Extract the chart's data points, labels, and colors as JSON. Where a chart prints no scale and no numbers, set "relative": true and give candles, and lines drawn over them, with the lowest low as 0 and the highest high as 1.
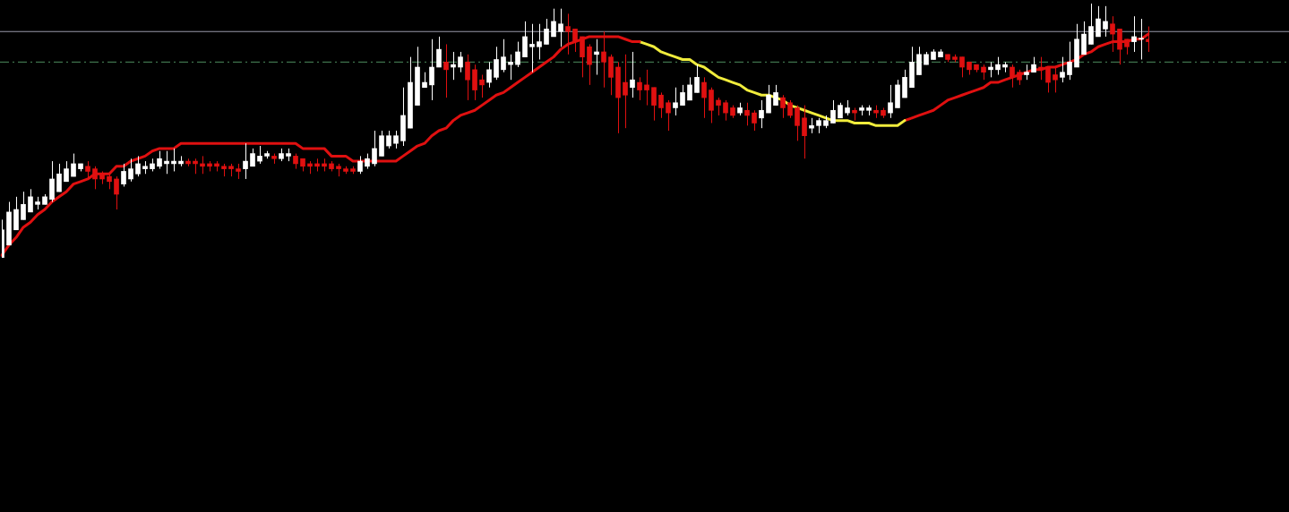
{
  "chart_data": {
    "type": "candlestick",
    "relative": true,
    "categories": [
      null,
      null,
      null,
      null,
      null,
      null,
      null,
      null,
      null,
      null,
      null,
      null,
      null,
      null,
      null,
      null,
      null,
      null,
      null,
      null,
      null,
      null,
      null,
      null,
      null,
      null,
      null,
      null,
      null,
      null,
      null,
      null,
      null,
      null,
      null,
      null,
      null,
      null,
      null,
      null,
      null,
      null,
      null,
      null,
      null,
      null,
      null,
      null,
      null,
      null,
      null,
      null,
      null,
      null,
      null,
      null,
      null,
      null,
      null,
      null,
      null,
      null,
      null,
      null,
      null,
      null,
      null,
      null,
      null,
      null,
      null,
      null,
      null,
      null,
      null,
      null,
      null,
      null,
      null,
      null,
      null,
      null,
      null,
      null,
      null,
      null,
      null,
      null,
      null,
      null,
      null,
      null,
      null,
      null,
      null,
      null,
      null,
      null,
      null,
      null,
      null,
      null,
      null,
      null,
      null,
      null,
      null,
      null,
      null,
      null,
      null,
      null,
      null,
      null,
      null,
      null,
      null,
      null,
      null,
      null,
      null,
      null,
      null,
      null,
      null,
      null,
      null,
      null,
      null,
      null,
      null,
      null,
      null,
      null,
      null,
      null,
      null,
      null,
      null,
      null,
      null,
      null,
      null,
      null,
      null,
      null,
      null,
      null,
      null,
      null,
      null,
      null,
      null,
      null,
      null,
      null,
      null,
      null,
      null,
      null,
      null
    ],
    "ohlc": [
      [
        0.0,
        0.15,
        0.0,
        0.11
      ],
      [
        0.05,
        0.22,
        0.05,
        0.18
      ],
      [
        0.11,
        0.24,
        0.11,
        0.19
      ],
      [
        0.15,
        0.26,
        0.15,
        0.21
      ],
      [
        0.18,
        0.27,
        0.18,
        0.24
      ],
      [
        0.21,
        0.24,
        0.19,
        0.22
      ],
      [
        0.21,
        0.25,
        0.21,
        0.24
      ],
      [
        0.23,
        0.38,
        0.22,
        0.31
      ],
      [
        0.26,
        0.37,
        0.26,
        0.33
      ],
      [
        0.3,
        0.38,
        0.3,
        0.35
      ],
      [
        0.32,
        0.41,
        0.32,
        0.37
      ],
      [
        0.35,
        0.37,
        0.34,
        0.37
      ],
      [
        0.36,
        0.38,
        0.31,
        0.34
      ],
      [
        0.35,
        0.36,
        0.27,
        0.31
      ],
      [
        0.33,
        0.34,
        0.29,
        0.31
      ],
      [
        0.32,
        0.33,
        0.27,
        0.3
      ],
      [
        0.31,
        0.32,
        0.19,
        0.25
      ],
      [
        0.29,
        0.37,
        0.28,
        0.34
      ],
      [
        0.31,
        0.39,
        0.3,
        0.35
      ],
      [
        0.33,
        0.4,
        0.32,
        0.37
      ],
      [
        0.35,
        0.38,
        0.33,
        0.36
      ],
      [
        0.35,
        0.39,
        0.34,
        0.37
      ],
      [
        0.36,
        0.42,
        0.35,
        0.39
      ],
      [
        0.37,
        0.42,
        0.33,
        0.38
      ],
      [
        0.37,
        0.43,
        0.34,
        0.38
      ],
      [
        0.37,
        0.4,
        0.36,
        0.38
      ],
      [
        0.38,
        0.39,
        0.36,
        0.37
      ],
      [
        0.38,
        0.39,
        0.33,
        0.37
      ],
      [
        0.37,
        0.4,
        0.33,
        0.36
      ],
      [
        0.37,
        0.38,
        0.34,
        0.36
      ],
      [
        0.37,
        0.38,
        0.34,
        0.36
      ],
      [
        0.36,
        0.37,
        0.32,
        0.35
      ],
      [
        0.36,
        0.37,
        0.32,
        0.35
      ],
      [
        0.35,
        0.37,
        0.31,
        0.34
      ],
      [
        0.35,
        0.45,
        0.31,
        0.38
      ],
      [
        0.36,
        0.43,
        0.36,
        0.41
      ],
      [
        0.38,
        0.44,
        0.37,
        0.4
      ],
      [
        0.4,
        0.42,
        0.39,
        0.41
      ],
      [
        0.4,
        0.41,
        0.37,
        0.39
      ],
      [
        0.39,
        0.43,
        0.38,
        0.41
      ],
      [
        0.4,
        0.43,
        0.38,
        0.41
      ],
      [
        0.4,
        0.41,
        0.35,
        0.37
      ],
      [
        0.39,
        0.39,
        0.34,
        0.36
      ],
      [
        0.37,
        0.38,
        0.33,
        0.36
      ],
      [
        0.37,
        0.39,
        0.34,
        0.36
      ],
      [
        0.37,
        0.39,
        0.34,
        0.36
      ],
      [
        0.37,
        0.38,
        0.34,
        0.35
      ],
      [
        0.36,
        0.37,
        0.32,
        0.35
      ],
      [
        0.35,
        0.36,
        0.33,
        0.34
      ],
      [
        0.35,
        0.36,
        0.33,
        0.34
      ],
      [
        0.34,
        0.4,
        0.33,
        0.38
      ],
      [
        0.36,
        0.41,
        0.35,
        0.39
      ],
      [
        0.37,
        0.5,
        0.36,
        0.43
      ],
      [
        0.4,
        0.5,
        0.4,
        0.48
      ],
      [
        0.44,
        0.5,
        0.43,
        0.48
      ],
      [
        0.45,
        0.5,
        0.43,
        0.48
      ],
      [
        0.46,
        0.67,
        0.44,
        0.56
      ],
      [
        0.51,
        0.79,
        0.51,
        0.69
      ],
      [
        0.6,
        0.83,
        0.6,
        0.75
      ],
      [
        0.67,
        0.73,
        0.67,
        0.69
      ],
      [
        0.68,
        0.86,
        0.62,
        0.75
      ],
      [
        0.75,
        0.87,
        0.75,
        0.82
      ],
      [
        0.77,
        0.84,
        0.63,
        0.74
      ],
      [
        0.75,
        0.81,
        0.7,
        0.76
      ],
      [
        0.75,
        0.81,
        0.73,
        0.79
      ],
      [
        0.77,
        0.8,
        0.62,
        0.7
      ],
      [
        0.74,
        0.76,
        0.62,
        0.66
      ],
      [
        0.7,
        0.72,
        0.63,
        0.68
      ],
      [
        0.69,
        0.77,
        0.67,
        0.74
      ],
      [
        0.71,
        0.83,
        0.7,
        0.78
      ],
      [
        0.74,
        0.86,
        0.73,
        0.79
      ],
      [
        0.76,
        0.8,
        0.7,
        0.77
      ],
      [
        0.76,
        0.85,
        0.75,
        0.81
      ],
      [
        0.79,
        0.93,
        0.79,
        0.87
      ],
      [
        0.83,
        0.92,
        0.73,
        0.84
      ],
      [
        0.83,
        0.92,
        0.78,
        0.85
      ],
      [
        0.84,
        0.94,
        0.84,
        0.9
      ],
      [
        0.87,
        0.98,
        0.87,
        0.93
      ],
      [
        0.89,
        0.98,
        0.83,
        0.92
      ],
      [
        0.91,
        0.96,
        0.8,
        0.89
      ],
      [
        0.9,
        0.9,
        0.81,
        0.85
      ],
      [
        0.87,
        0.87,
        0.71,
        0.79
      ],
      [
        0.83,
        0.84,
        0.68,
        0.76
      ],
      [
        0.8,
        0.86,
        0.72,
        0.81
      ],
      [
        0.81,
        0.89,
        0.67,
        0.77
      ],
      [
        0.79,
        0.8,
        0.64,
        0.71
      ],
      [
        0.75,
        0.77,
        0.49,
        0.63
      ],
      [
        0.69,
        0.8,
        0.51,
        0.64
      ],
      [
        0.67,
        0.81,
        0.63,
        0.7
      ],
      [
        0.69,
        0.71,
        0.62,
        0.66
      ],
      [
        0.68,
        0.74,
        0.6,
        0.66
      ],
      [
        0.67,
        0.67,
        0.54,
        0.6
      ],
      [
        0.64,
        0.65,
        0.55,
        0.59
      ],
      [
        0.61,
        0.62,
        0.5,
        0.57
      ],
      [
        0.59,
        0.67,
        0.56,
        0.61
      ],
      [
        0.6,
        0.68,
        0.6,
        0.65
      ],
      [
        0.62,
        0.71,
        0.62,
        0.68
      ],
      [
        0.65,
        0.76,
        0.65,
        0.71
      ],
      [
        0.69,
        0.71,
        0.55,
        0.63
      ],
      [
        0.66,
        0.67,
        0.53,
        0.58
      ],
      [
        0.62,
        0.63,
        0.56,
        0.6
      ],
      [
        0.61,
        0.62,
        0.54,
        0.57
      ],
      [
        0.59,
        0.6,
        0.55,
        0.56
      ],
      [
        0.57,
        0.61,
        0.56,
        0.59
      ],
      [
        0.58,
        0.61,
        0.52,
        0.56
      ],
      [
        0.57,
        0.58,
        0.5,
        0.53
      ],
      [
        0.55,
        0.62,
        0.51,
        0.58
      ],
      [
        0.57,
        0.68,
        0.57,
        0.64
      ],
      [
        0.6,
        0.68,
        0.6,
        0.65
      ],
      [
        0.63,
        0.64,
        0.55,
        0.59
      ],
      [
        0.61,
        0.62,
        0.55,
        0.56
      ],
      [
        0.59,
        0.6,
        0.46,
        0.52
      ],
      [
        0.55,
        0.6,
        0.39,
        0.48
      ],
      [
        0.51,
        0.55,
        0.49,
        0.52
      ],
      [
        0.52,
        0.55,
        0.49,
        0.54
      ],
      [
        0.52,
        0.56,
        0.51,
        0.54
      ],
      [
        0.53,
        0.62,
        0.53,
        0.58
      ],
      [
        0.55,
        0.61,
        0.55,
        0.6
      ],
      [
        0.57,
        0.62,
        0.56,
        0.59
      ],
      [
        0.58,
        0.59,
        0.54,
        0.57
      ],
      [
        0.58,
        0.6,
        0.56,
        0.59
      ],
      [
        0.58,
        0.6,
        0.56,
        0.59
      ],
      [
        0.58,
        0.6,
        0.55,
        0.57
      ],
      [
        0.58,
        0.59,
        0.55,
        0.56
      ],
      [
        0.57,
        0.68,
        0.55,
        0.61
      ],
      [
        0.59,
        0.7,
        0.59,
        0.68
      ],
      [
        0.63,
        0.74,
        0.63,
        0.71
      ],
      [
        0.67,
        0.83,
        0.67,
        0.77
      ],
      [
        0.72,
        0.83,
        0.72,
        0.8
      ],
      [
        0.76,
        0.81,
        0.76,
        0.8
      ],
      [
        0.78,
        0.82,
        0.78,
        0.81
      ],
      [
        0.79,
        0.82,
        0.79,
        0.81
      ],
      [
        0.8,
        0.8,
        0.77,
        0.78
      ],
      [
        0.79,
        0.8,
        0.77,
        0.78
      ],
      [
        0.79,
        0.79,
        0.71,
        0.75
      ],
      [
        0.77,
        0.77,
        0.72,
        0.74
      ],
      [
        0.76,
        0.76,
        0.73,
        0.74
      ],
      [
        0.75,
        0.76,
        0.7,
        0.73
      ],
      [
        0.74,
        0.77,
        0.71,
        0.75
      ],
      [
        0.74,
        0.79,
        0.72,
        0.76
      ],
      [
        0.75,
        0.77,
        0.73,
        0.76
      ],
      [
        0.75,
        0.76,
        0.67,
        0.71
      ],
      [
        0.73,
        0.74,
        0.68,
        0.7
      ],
      [
        0.72,
        0.76,
        0.7,
        0.73
      ],
      [
        0.73,
        0.79,
        0.73,
        0.76
      ],
      [
        0.75,
        0.79,
        0.7,
        0.74
      ],
      [
        0.75,
        0.75,
        0.65,
        0.69
      ],
      [
        0.72,
        0.75,
        0.65,
        0.7
      ],
      [
        0.71,
        0.79,
        0.69,
        0.73
      ],
      [
        0.72,
        0.85,
        0.7,
        0.77
      ],
      [
        0.75,
        0.92,
        0.75,
        0.86
      ],
      [
        0.8,
        0.93,
        0.8,
        0.88
      ],
      [
        0.84,
        1,
        0.84,
        0.91
      ],
      [
        0.87,
        0.99,
        0.87,
        0.94
      ],
      [
        0.9,
        0.99,
        0.87,
        0.93
      ],
      [
        0.92,
        0.95,
        0.81,
        0.88
      ],
      [
        0.9,
        0.9,
        0.76,
        0.82
      ],
      [
        0.86,
        0.86,
        0.8,
        0.83
      ],
      [
        0.85,
        0.95,
        0.81,
        0.87
      ],
      [
        0.86,
        0.94,
        0.78,
        0.86
      ],
      [
        0.86,
        0.91,
        0.81,
        0.85
      ]
    ],
    "series": [
      {
        "type": "line",
        "color": "#e01010",
        "values": [
          0.01,
          0.05,
          0.08,
          0.12,
          0.14,
          0.17,
          0.19,
          0.22,
          0.24,
          0.26,
          0.29,
          0.3,
          0.31,
          0.33,
          0.33,
          0.33,
          0.36,
          0.36,
          0.38,
          0.39,
          0.4,
          0.42,
          0.43,
          0.43,
          0.43,
          0.45,
          0.45,
          0.45,
          0.45,
          0.45,
          0.45,
          0.45,
          0.45,
          0.45,
          0.45,
          0.45,
          0.45,
          0.45,
          0.45,
          0.45,
          0.45,
          0.45,
          0.43,
          0.43,
          0.43,
          0.43,
          0.4,
          0.4,
          0.4,
          0.38,
          0.38,
          0.38,
          0.38,
          0.38,
          0.38,
          0.38,
          0.4,
          0.42,
          0.44,
          0.45,
          0.48,
          0.5,
          0.51,
          0.54,
          0.56,
          0.57,
          0.58,
          0.6,
          0.62,
          0.64,
          0.65,
          0.67,
          0.69,
          0.71,
          0.73,
          0.75,
          0.77,
          0.79,
          0.82,
          0.84,
          0.85,
          0.86,
          0.87,
          0.87,
          0.87,
          0.87,
          0.87,
          0.86,
          0.85,
          0.85,
          null,
          null,
          null,
          null,
          null,
          null,
          null,
          null,
          null,
          null,
          null,
          null,
          null,
          null,
          null,
          null,
          null,
          null,
          null,
          null,
          null,
          null,
          null,
          null,
          null,
          null,
          null,
          null,
          null,
          null,
          null,
          null,
          null,
          null,
          null,
          null,
          null,
          null,
          null,
          null,
          null,
          null,
          null,
          null,
          null,
          null,
          null,
          null,
          null,
          null,
          null,
          null,
          null,
          null,
          null,
          null,
          null,
          null,
          null,
          null,
          null,
          null,
          null,
          null,
          null,
          null,
          null,
          null,
          null,
          null,
          null
        ]
      },
      {
        "type": "line",
        "color": "#f0ec3c",
        "values": [
          null,
          null,
          null,
          null,
          null,
          null,
          null,
          null,
          null,
          null,
          null,
          null,
          null,
          null,
          null,
          null,
          null,
          null,
          null,
          null,
          null,
          null,
          null,
          null,
          null,
          null,
          null,
          null,
          null,
          null,
          null,
          null,
          null,
          null,
          null,
          null,
          null,
          null,
          null,
          null,
          null,
          null,
          null,
          null,
          null,
          null,
          null,
          null,
          null,
          null,
          null,
          null,
          null,
          null,
          null,
          null,
          null,
          null,
          null,
          null,
          null,
          null,
          null,
          null,
          null,
          null,
          null,
          null,
          null,
          null,
          null,
          null,
          null,
          null,
          null,
          null,
          null,
          null,
          null,
          null,
          null,
          null,
          null,
          null,
          null,
          null,
          null,
          null,
          null,
          0.85,
          0.84,
          0.83,
          0.81,
          0.8,
          0.79,
          0.78,
          0.78,
          0.76,
          0.75,
          0.73,
          0.71,
          0.7,
          0.69,
          0.68,
          0.66,
          0.65,
          0.64,
          0.64,
          0.63,
          0.62,
          0.6,
          0.59,
          0.58,
          0.57,
          0.56,
          0.55,
          0.54,
          0.54,
          0.54,
          0.53,
          0.53,
          0.53,
          0.52,
          0.52,
          0.52,
          0.52,
          0.54,
          null,
          null,
          null,
          null,
          null,
          null,
          null,
          null,
          null,
          null,
          null,
          null,
          null,
          null,
          null,
          null,
          null,
          null,
          null,
          null,
          null,
          null,
          null,
          null,
          null,
          null,
          null,
          null,
          null,
          null,
          null,
          null,
          null,
          null
        ]
      },
      {
        "type": "line",
        "color": "#e01010",
        "values": [
          null,
          null,
          null,
          null,
          null,
          null,
          null,
          null,
          null,
          null,
          null,
          null,
          null,
          null,
          null,
          null,
          null,
          null,
          null,
          null,
          null,
          null,
          null,
          null,
          null,
          null,
          null,
          null,
          null,
          null,
          null,
          null,
          null,
          null,
          null,
          null,
          null,
          null,
          null,
          null,
          null,
          null,
          null,
          null,
          null,
          null,
          null,
          null,
          null,
          null,
          null,
          null,
          null,
          null,
          null,
          null,
          null,
          null,
          null,
          null,
          null,
          null,
          null,
          null,
          null,
          null,
          null,
          null,
          null,
          null,
          null,
          null,
          null,
          null,
          null,
          null,
          null,
          null,
          null,
          null,
          null,
          null,
          null,
          null,
          null,
          null,
          null,
          null,
          null,
          null,
          null,
          null,
          null,
          null,
          null,
          null,
          null,
          null,
          null,
          null,
          null,
          null,
          null,
          null,
          null,
          null,
          null,
          null,
          null,
          null,
          null,
          null,
          null,
          null,
          null,
          null,
          null,
          null,
          null,
          null,
          null,
          null,
          null,
          null,
          null,
          null,
          0.54,
          0.55,
          0.56,
          0.57,
          0.58,
          0.6,
          0.62,
          0.63,
          0.64,
          0.65,
          0.66,
          0.67,
          0.69,
          0.69,
          0.7,
          0.71,
          0.72,
          0.73,
          0.74,
          0.74,
          0.75,
          0.75,
          0.76,
          0.77,
          0.78,
          0.8,
          0.81,
          0.83,
          0.84,
          0.85,
          0.85,
          0.85,
          0.86,
          0.86,
          0.88
        ]
      }
    ],
    "ref_lines": [
      {
        "axis": "y",
        "value": 0.89,
        "color": "#9a9aaa",
        "line_style": "solid"
      },
      {
        "axis": "y",
        "value": 0.77,
        "color": "#4f8f5f",
        "line_style": "dashed"
      }
    ]
  }
}
